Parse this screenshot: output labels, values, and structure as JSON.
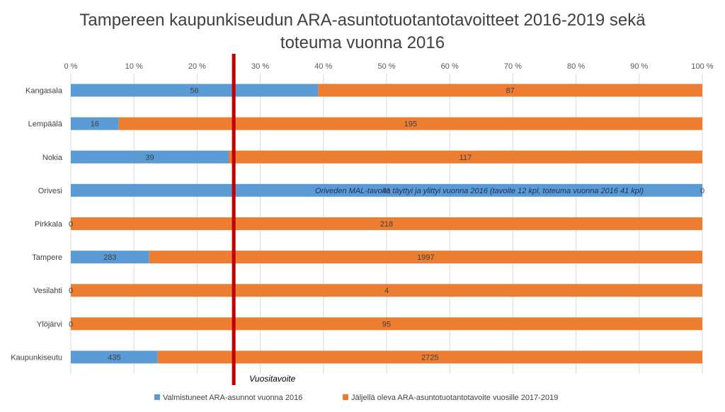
{
  "chart_data": {
    "type": "bar",
    "orientation": "horizontal",
    "stacked": "100%",
    "title_lines": [
      "Tampereen kaupunkiseudun ARA-asuntotuotantotavoitteet 2016-2019 sekä",
      "toteuma vuonna 2016"
    ],
    "categories": [
      "Kangasala",
      "Lempäälä",
      "Nokia",
      "Orivesi",
      "Pirkkala",
      "Tampere",
      "Vesilahti",
      "Ylöjärvi",
      "Kaupunkiseutu"
    ],
    "series": [
      {
        "name": "Valmistuneet ARA-asunnot vuonna 2016",
        "color": "#5b9bd5",
        "values": [
          56,
          16,
          39,
          41,
          0,
          283,
          0,
          0,
          435
        ]
      },
      {
        "name": "Jäljellä oleva ARA-asuntotuotantotavoite vuosille 2017-2019",
        "color": "#ed7d31",
        "values": [
          87,
          195,
          117,
          0,
          218,
          1997,
          4,
          95,
          2725
        ]
      }
    ],
    "x_ticks": [
      "0 %",
      "10 %",
      "20 %",
      "30 %",
      "40 %",
      "50 %",
      "60 %",
      "70 %",
      "80 %",
      "90 %",
      "100 %"
    ],
    "xlim": [
      0,
      100
    ],
    "grid": true,
    "reference_line": {
      "label": "Vuositavoite",
      "value_percent": 25.8,
      "color": "#c00000"
    },
    "annotation": {
      "category": "Orivesi",
      "text": "Oriveden MAL-tavoite täyttyi ja ylittyi vuonna 2016 (tavoite 12 kpl, toteuma vuonna 2016 41 kpl)"
    },
    "legend_position": "bottom"
  }
}
